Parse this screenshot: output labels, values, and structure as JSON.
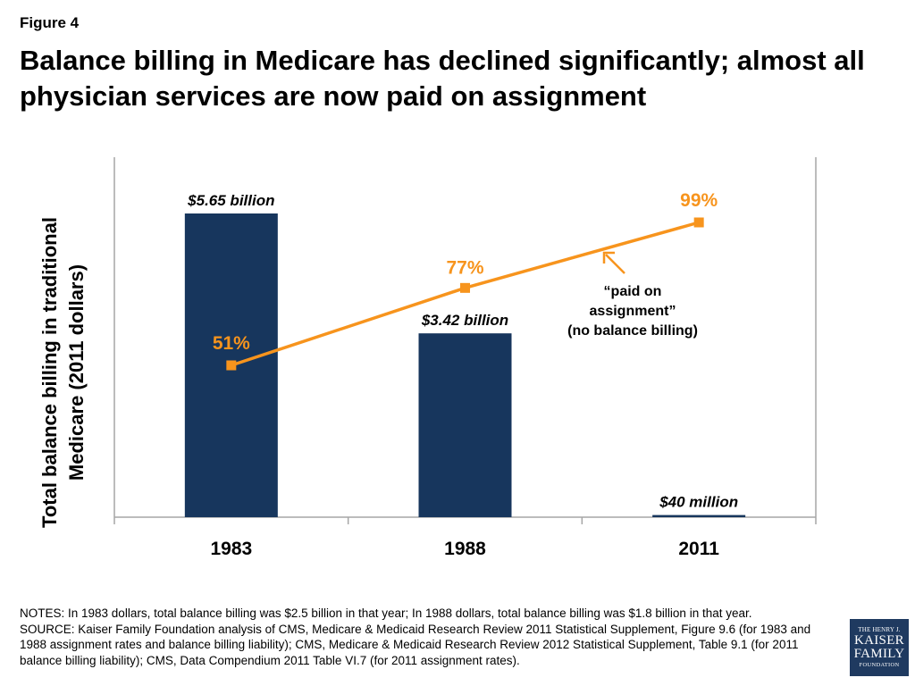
{
  "figure_label": "Figure 4",
  "title": "Balance billing in Medicare has declined significantly; almost all physician services are now paid on assignment",
  "colors": {
    "bar": "#17365d",
    "line": "#f7941d",
    "axis": "#a6a6a6"
  },
  "chart_data": {
    "type": "bar",
    "categories": [
      "1983",
      "1988",
      "2011"
    ],
    "ylabel": "Total balance billing in traditional Medicare (2011 dollars)",
    "series": [
      {
        "type": "bar",
        "values": [
          5.65,
          3.42,
          0.04
        ],
        "unit": "billion 2011 dollars",
        "labels": [
          "$5.65 billion",
          "$3.42 billion",
          "$40 million"
        ]
      },
      {
        "type": "line",
        "values": [
          51,
          77,
          99
        ],
        "unit": "percent",
        "labels": [
          "51%",
          "77%",
          "99%"
        ]
      }
    ],
    "ylim_bar": [
      0,
      6
    ],
    "ylim_line": [
      0,
      130
    ],
    "annotation": {
      "lines": [
        "“paid on",
        "assignment”",
        "(no balance billing)"
      ]
    },
    "grid": false,
    "legend": "none"
  },
  "notes": [
    "NOTES: In 1983 dollars, total balance billing was $2.5 billion in that year; In 1988 dollars, total balance billing was $1.8 billion in that year.",
    "SOURCE: Kaiser Family Foundation analysis of CMS, Medicare & Medicaid Research Review 2011 Statistical Supplement, Figure 9.6 (for 1983 and 1988 assignment rates and balance billing liability); CMS, Medicare & Medicaid Research Review 2012 Statistical Supplement, Table 9.1 (for 2011 balance billing liability); CMS, Data Compendium 2011 Table VI.7 (for 2011 assignment rates)."
  ],
  "logo": {
    "line1": "THE HENRY J.",
    "line2": "KAISER",
    "line3": "FAMILY",
    "line4": "FOUNDATION"
  }
}
